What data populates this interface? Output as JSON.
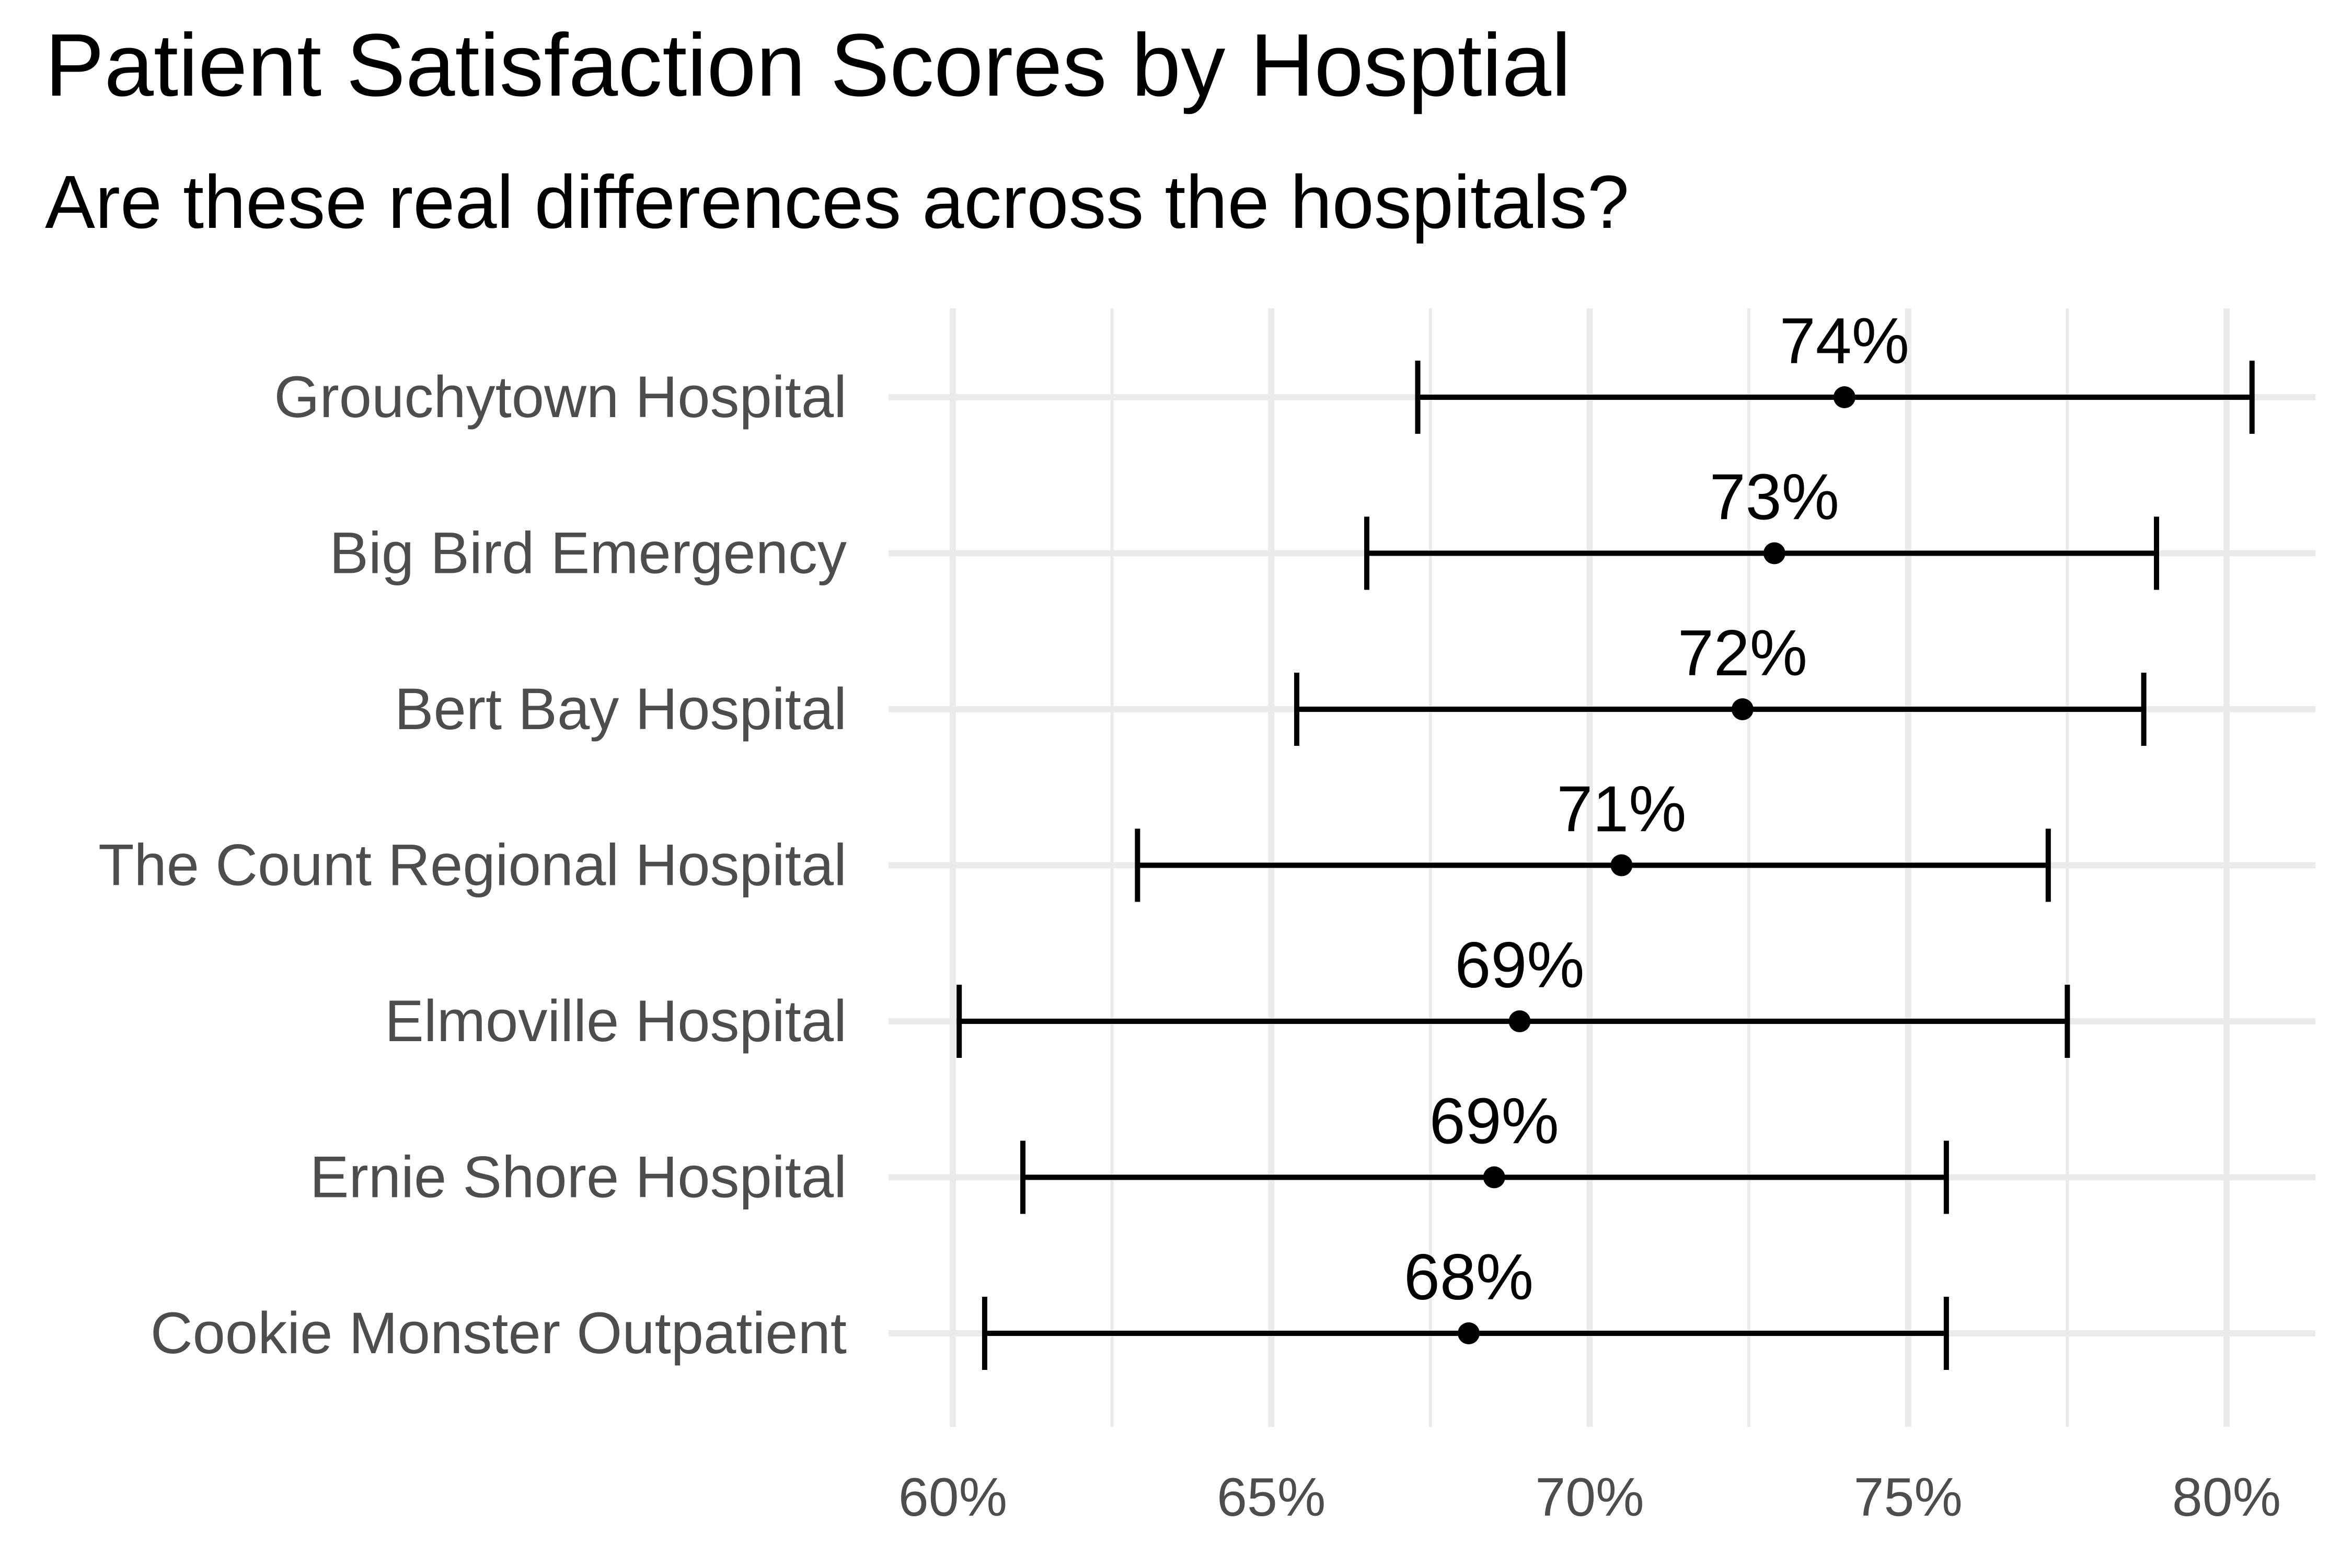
{
  "chart_data": {
    "type": "errorbar",
    "title": "Patient Satisfaction Scores by Hosptial",
    "subtitle": "Are these real differences across the hospitals?",
    "xlabel": "",
    "ylabel": "",
    "xlim": [
      0.59,
      0.81
    ],
    "xticks": [
      0.6,
      0.65,
      0.7,
      0.75,
      0.8
    ],
    "xtick_labels": [
      "60%",
      "65%",
      "70%",
      "75%",
      "80%"
    ],
    "grid": true,
    "categories": [
      "Grouchytown Hospital",
      "Big Bird Emergency",
      "Bert Bay Hospital",
      "The Count Regional Hospital",
      "Elmoville Hospital",
      "Ernie Shore Hospital",
      "Cookie Monster Outpatient"
    ],
    "values": [
      0.74,
      0.729,
      0.724,
      0.705,
      0.689,
      0.685,
      0.681
    ],
    "lower": [
      0.673,
      0.665,
      0.654,
      0.629,
      0.601,
      0.611,
      0.605
    ],
    "upper": [
      0.804,
      0.789,
      0.787,
      0.772,
      0.775,
      0.756,
      0.756
    ],
    "value_labels": [
      "74%",
      "73%",
      "72%",
      "71%",
      "69%",
      "69%",
      "68%"
    ]
  }
}
